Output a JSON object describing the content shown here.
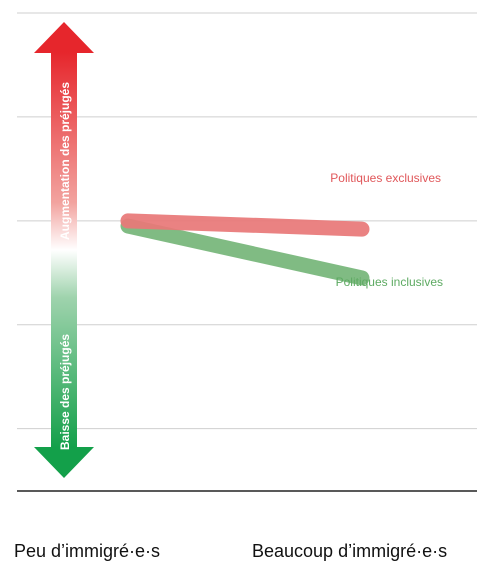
{
  "chart_data": {
    "type": "line",
    "categories": [
      "Peu d’immigré·e·s",
      "Beaucoup d’immigré·e·s"
    ],
    "series": [
      {
        "name": "Politiques exclusives",
        "values": [
          0.0,
          -0.08
        ],
        "color": "#e87878"
      },
      {
        "name": "Politiques inclusives",
        "values": [
          -0.05,
          -0.55
        ],
        "color": "#76b67a"
      }
    ],
    "ylim": [
      -2.6,
      2.0
    ],
    "grid": true,
    "axis_arrow": {
      "up_label": "Augmentation des préjugés",
      "down_label": "Baisse des préjugés",
      "up_color": "#e6262c",
      "down_color": "#13a04a"
    }
  }
}
